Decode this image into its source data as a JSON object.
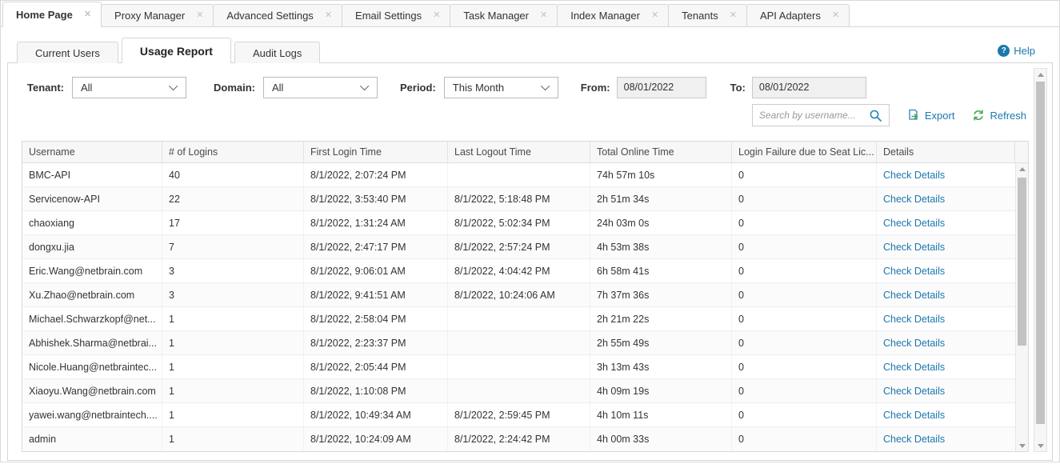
{
  "top_tabs": [
    {
      "label": "Home Page",
      "active": true
    },
    {
      "label": "Proxy Manager",
      "active": false
    },
    {
      "label": "Advanced Settings",
      "active": false
    },
    {
      "label": "Email Settings",
      "active": false
    },
    {
      "label": "Task Manager",
      "active": false
    },
    {
      "label": "Index Manager",
      "active": false
    },
    {
      "label": "Tenants",
      "active": false
    },
    {
      "label": "API Adapters",
      "active": false
    }
  ],
  "sub_tabs": [
    {
      "label": "Current Users",
      "active": false
    },
    {
      "label": "Usage Report",
      "active": true
    },
    {
      "label": "Audit Logs",
      "active": false
    }
  ],
  "help": {
    "label": "Help"
  },
  "filters": {
    "tenant_label": "Tenant:",
    "tenant_value": "All",
    "domain_label": "Domain:",
    "domain_value": "All",
    "period_label": "Period:",
    "period_value": "This Month",
    "from_label": "From:",
    "from_value": "08/01/2022",
    "to_label": "To:",
    "to_value": "08/01/2022"
  },
  "toolbar": {
    "search_placeholder": "Search by username...",
    "export_label": "Export",
    "refresh_label": "Refresh"
  },
  "table": {
    "columns": [
      "Username",
      "# of Logins",
      "First Login Time",
      "Last Logout Time",
      "Total Online Time",
      "Login Failure due to Seat Lic...",
      "Details"
    ],
    "rows": [
      {
        "username": "BMC-API",
        "logins": "40",
        "first_login": "8/1/2022, 2:07:24 PM",
        "last_logout": "",
        "online_time": "74h 57m 10s",
        "failures": "0",
        "details": "Check Details"
      },
      {
        "username": "Servicenow-API",
        "logins": "22",
        "first_login": "8/1/2022, 3:53:40 PM",
        "last_logout": "8/1/2022, 5:18:48 PM",
        "online_time": "2h 51m 34s",
        "failures": "0",
        "details": "Check Details"
      },
      {
        "username": "chaoxiang",
        "logins": "17",
        "first_login": "8/1/2022, 1:31:24 AM",
        "last_logout": "8/1/2022, 5:02:34 PM",
        "online_time": "24h 03m 0s",
        "failures": "0",
        "details": "Check Details"
      },
      {
        "username": "dongxu.jia",
        "logins": "7",
        "first_login": "8/1/2022, 2:47:17 PM",
        "last_logout": "8/1/2022, 2:57:24 PM",
        "online_time": "4h 53m 38s",
        "failures": "0",
        "details": "Check Details"
      },
      {
        "username": "Eric.Wang@netbrain.com",
        "logins": "3",
        "first_login": "8/1/2022, 9:06:01 AM",
        "last_logout": "8/1/2022, 4:04:42 PM",
        "online_time": "6h 58m 41s",
        "failures": "0",
        "details": "Check Details"
      },
      {
        "username": "Xu.Zhao@netbrain.com",
        "logins": "3",
        "first_login": "8/1/2022, 9:41:51 AM",
        "last_logout": "8/1/2022, 10:24:06 AM",
        "online_time": "7h 37m 36s",
        "failures": "0",
        "details": "Check Details"
      },
      {
        "username": "Michael.Schwarzkopf@net...",
        "logins": "1",
        "first_login": "8/1/2022, 2:58:04 PM",
        "last_logout": "",
        "online_time": "2h 21m 22s",
        "failures": "0",
        "details": "Check Details"
      },
      {
        "username": "Abhishek.Sharma@netbrai...",
        "logins": "1",
        "first_login": "8/1/2022, 2:23:37 PM",
        "last_logout": "",
        "online_time": "2h 55m 49s",
        "failures": "0",
        "details": "Check Details"
      },
      {
        "username": "Nicole.Huang@netbraintec...",
        "logins": "1",
        "first_login": "8/1/2022, 2:05:44 PM",
        "last_logout": "",
        "online_time": "3h 13m 43s",
        "failures": "0",
        "details": "Check Details"
      },
      {
        "username": "Xiaoyu.Wang@netbrain.com",
        "logins": "1",
        "first_login": "8/1/2022, 1:10:08 PM",
        "last_logout": "",
        "online_time": "4h 09m 19s",
        "failures": "0",
        "details": "Check Details"
      },
      {
        "username": "yawei.wang@netbraintech....",
        "logins": "1",
        "first_login": "8/1/2022, 10:49:34 AM",
        "last_logout": "8/1/2022, 2:59:45 PM",
        "online_time": "4h 10m 11s",
        "failures": "0",
        "details": "Check Details"
      },
      {
        "username": "admin",
        "logins": "1",
        "first_login": "8/1/2022, 10:24:09 AM",
        "last_logout": "8/1/2022, 2:24:42 PM",
        "online_time": "4h 00m 33s",
        "failures": "0",
        "details": "Check Details"
      }
    ]
  },
  "colors": {
    "link_blue": "#1b78ad",
    "icon_green": "#3fae4e",
    "icon_blue": "#2e86b8"
  }
}
